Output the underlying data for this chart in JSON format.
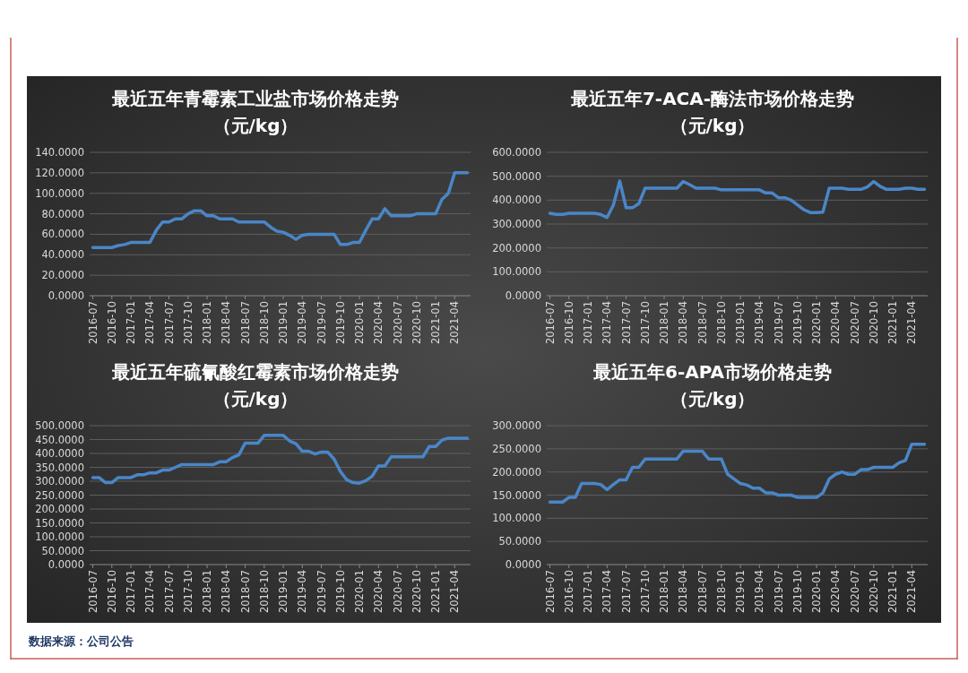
{
  "chart_data": [
    {
      "type": "line",
      "title": "最近五年青霉素工业盐市场价格走势",
      "subtitle": "（元/kg）",
      "grid": "y",
      "categories": [
        "2016-07",
        null,
        null,
        "2016-10",
        null,
        null,
        "2017-01",
        null,
        null,
        "2017-04",
        null,
        null,
        "2017-07",
        null,
        null,
        "2017-10",
        null,
        null,
        "2018-01",
        null,
        null,
        "2018-04",
        null,
        null,
        "2018-07",
        null,
        null,
        "2018-10",
        null,
        null,
        "2019-01",
        null,
        null,
        "2019-04",
        null,
        null,
        "2019-07",
        null,
        null,
        "2019-10",
        null,
        null,
        "2020-01",
        null,
        null,
        "2020-04",
        null,
        null,
        "2020-07",
        null,
        null,
        "2020-10",
        null,
        null,
        "2021-01",
        null,
        null,
        "2021-04",
        null,
        null
      ],
      "series": [
        {
          "color": "#4a86c8",
          "values": [
            47,
            47,
            47,
            47,
            49,
            50,
            52,
            52,
            52,
            52,
            64,
            72,
            72,
            75,
            75,
            80,
            83,
            83,
            78,
            78,
            75,
            75,
            75,
            72,
            72,
            72,
            72,
            72,
            67,
            63,
            62,
            59,
            55,
            59,
            60,
            60,
            60,
            60,
            60,
            50,
            50,
            52,
            52,
            64,
            75,
            75,
            85,
            78,
            78,
            78,
            78,
            80,
            80,
            80,
            80,
            94,
            100,
            120,
            120,
            120
          ]
        }
      ],
      "ylim": [
        0,
        140
      ],
      "yticks": [
        {
          "value": 0,
          "label": "0.0000"
        },
        {
          "value": 20,
          "label": "20.0000"
        },
        {
          "value": 40,
          "label": "40.0000"
        },
        {
          "value": 60,
          "label": "60.0000"
        },
        {
          "value": 80,
          "label": "80.0000"
        },
        {
          "value": 100,
          "label": "100.0000"
        },
        {
          "value": 120,
          "label": "120.0000"
        },
        {
          "value": 140,
          "label": "140.0000"
        }
      ],
      "annotations": [
        "数据来源：公司公告"
      ]
    },
    {
      "type": "line",
      "title": "最近五年7-ACA-酶法市场价格走势",
      "subtitle": "（元/kg）",
      "grid": "y",
      "categories": [
        "2016-07",
        null,
        null,
        "2016-10",
        null,
        null,
        "2017-01",
        null,
        null,
        "2017-04",
        null,
        null,
        "2017-07",
        null,
        null,
        "2017-10",
        null,
        null,
        "2018-01",
        null,
        null,
        "2018-04",
        null,
        null,
        "2018-07",
        null,
        null,
        "2018-10",
        null,
        null,
        "2019-01",
        null,
        null,
        "2019-04",
        null,
        null,
        "2019-07",
        null,
        null,
        "2019-10",
        null,
        null,
        "2020-01",
        null,
        null,
        "2020-04",
        null,
        null,
        "2020-07",
        null,
        null,
        "2020-10",
        null,
        null,
        "2021-01",
        null,
        null,
        "2021-04",
        null,
        null
      ],
      "series": [
        {
          "color": "#4a86c8",
          "values": [
            345,
            340,
            340,
            345,
            345,
            345,
            345,
            345,
            340,
            327,
            380,
            480,
            368,
            368,
            385,
            450,
            450,
            450,
            450,
            450,
            450,
            478,
            465,
            450,
            450,
            450,
            450,
            443,
            443,
            443,
            443,
            443,
            443,
            443,
            430,
            430,
            410,
            410,
            400,
            380,
            360,
            348,
            348,
            350,
            450,
            450,
            450,
            445,
            445,
            445,
            455,
            478,
            458,
            445,
            445,
            445,
            450,
            450,
            445,
            445
          ]
        }
      ],
      "ylim": [
        0,
        600
      ],
      "yticks": [
        {
          "value": 0,
          "label": "0.0000"
        },
        {
          "value": 100,
          "label": "100.0000"
        },
        {
          "value": 200,
          "label": "200.0000"
        },
        {
          "value": 300,
          "label": "300.0000"
        },
        {
          "value": 400,
          "label": "400.0000"
        },
        {
          "value": 500,
          "label": "500.0000"
        },
        {
          "value": 600,
          "label": "600.0000"
        }
      ]
    },
    {
      "type": "line",
      "title": "最近五年硫氰酸红霉素市场价格走势",
      "subtitle": "（元/kg）",
      "grid": "y",
      "categories": [
        "2016-07",
        null,
        null,
        "2016-10",
        null,
        null,
        "2017-01",
        null,
        null,
        "2017-04",
        null,
        null,
        "2017-07",
        null,
        null,
        "2017-10",
        null,
        null,
        "2018-01",
        null,
        null,
        "2018-04",
        null,
        null,
        "2018-07",
        null,
        null,
        "2018-10",
        null,
        null,
        "2019-01",
        null,
        null,
        "2019-04",
        null,
        null,
        "2019-07",
        null,
        null,
        "2019-10",
        null,
        null,
        "2020-01",
        null,
        null,
        "2020-04",
        null,
        null,
        "2020-07",
        null,
        null,
        "2020-10",
        null,
        null,
        "2021-01",
        null,
        null,
        "2021-04",
        null,
        null
      ],
      "series": [
        {
          "color": "#4a86c8",
          "values": [
            313,
            313,
            295,
            295,
            313,
            313,
            313,
            323,
            323,
            330,
            330,
            340,
            340,
            350,
            360,
            360,
            360,
            360,
            360,
            360,
            370,
            370,
            385,
            395,
            437,
            437,
            437,
            465,
            465,
            465,
            465,
            445,
            435,
            408,
            408,
            398,
            405,
            405,
            380,
            335,
            305,
            295,
            293,
            302,
            318,
            355,
            355,
            388,
            388,
            388,
            388,
            388,
            388,
            425,
            425,
            448,
            455,
            455,
            455,
            455
          ]
        }
      ],
      "ylim": [
        0,
        500
      ],
      "yticks": [
        {
          "value": 0,
          "label": "0.0000"
        },
        {
          "value": 50,
          "label": "50.0000"
        },
        {
          "value": 100,
          "label": "100.0000"
        },
        {
          "value": 150,
          "label": "150.0000"
        },
        {
          "value": 200,
          "label": "200.0000"
        },
        {
          "value": 250,
          "label": "250.0000"
        },
        {
          "value": 300,
          "label": "300.0000"
        },
        {
          "value": 350,
          "label": "350.0000"
        },
        {
          "value": 400,
          "label": "400.0000"
        },
        {
          "value": 450,
          "label": "450.0000"
        },
        {
          "value": 500,
          "label": "500.0000"
        }
      ]
    },
    {
      "type": "line",
      "title": "最近五年6-APA市场价格走势",
      "subtitle": "（元/kg）",
      "grid": "y",
      "categories": [
        "2016-07",
        null,
        null,
        "2016-10",
        null,
        null,
        "2017-01",
        null,
        null,
        "2017-04",
        null,
        null,
        "2017-07",
        null,
        null,
        "2017-10",
        null,
        null,
        "2018-01",
        null,
        null,
        "2018-04",
        null,
        null,
        "2018-07",
        null,
        null,
        "2018-10",
        null,
        null,
        "2019-01",
        null,
        null,
        "2019-04",
        null,
        null,
        "2019-07",
        null,
        null,
        "2019-10",
        null,
        null,
        "2020-01",
        null,
        null,
        "2020-04",
        null,
        null,
        "2020-07",
        null,
        null,
        "2020-10",
        null,
        null,
        "2021-01",
        null,
        null,
        "2021-04",
        null,
        null
      ],
      "series": [
        {
          "color": "#4a86c8",
          "values": [
            135,
            135,
            135,
            145,
            145,
            175,
            175,
            175,
            173,
            162,
            173,
            183,
            183,
            210,
            210,
            228,
            228,
            228,
            228,
            228,
            228,
            245,
            245,
            245,
            245,
            228,
            228,
            228,
            195,
            185,
            175,
            172,
            165,
            165,
            155,
            155,
            150,
            150,
            150,
            145,
            145,
            145,
            145,
            155,
            185,
            195,
            200,
            195,
            195,
            205,
            205,
            210,
            210,
            210,
            210,
            220,
            225,
            260,
            260,
            260
          ]
        }
      ],
      "ylim": [
        0,
        300
      ],
      "yticks": [
        {
          "value": 0,
          "label": "0.0000"
        },
        {
          "value": 50,
          "label": "50.0000"
        },
        {
          "value": 100,
          "label": "100.0000"
        },
        {
          "value": 150,
          "label": "150.0000"
        },
        {
          "value": 200,
          "label": "200.0000"
        },
        {
          "value": 250,
          "label": "250.0000"
        },
        {
          "value": 300,
          "label": "300.0000"
        }
      ]
    }
  ]
}
